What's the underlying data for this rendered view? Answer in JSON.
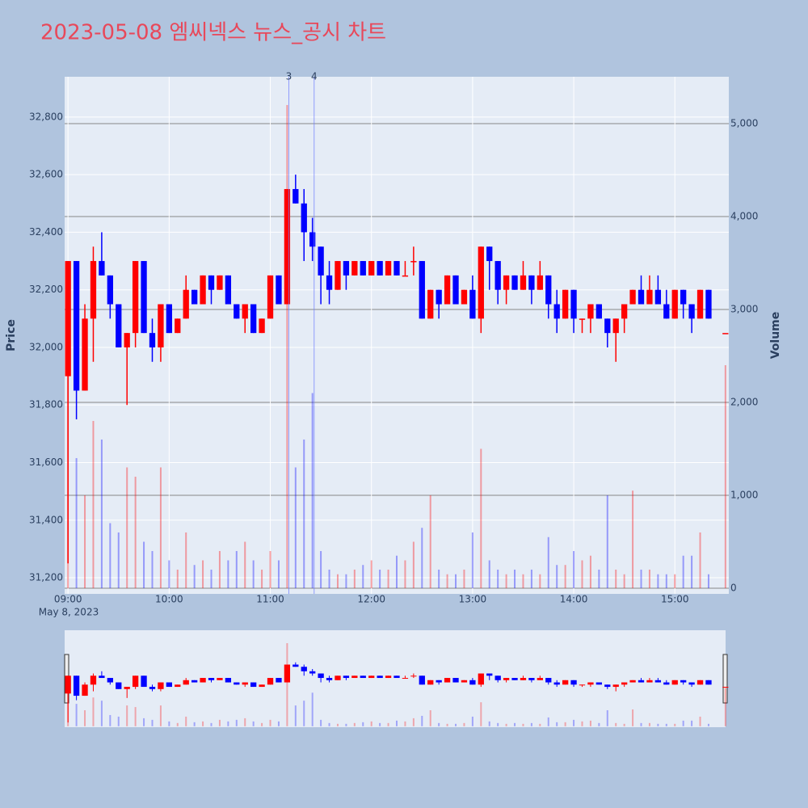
{
  "chart_data": {
    "type": "candlestick",
    "title": "2023-05-08 엠씨넥스 뉴스_공시 차트",
    "y_label": "Price",
    "y2_label": "Volume",
    "x_date_label": "May 8, 2023",
    "increasing_color": "#ff0000",
    "decreasing_color": "#0000ff",
    "grid": true,
    "xlim": [
      "2023-05-08 08:58",
      "2023-05-08 15:32"
    ],
    "xticks": [
      {
        "value": "2023-05-08 09:00",
        "label": "09:00"
      },
      {
        "value": "2023-05-08 10:00",
        "label": "10:00"
      },
      {
        "value": "2023-05-08 11:00",
        "label": "11:00"
      },
      {
        "value": "2023-05-08 12:00",
        "label": "12:00"
      },
      {
        "value": "2023-05-08 13:00",
        "label": "13:00"
      },
      {
        "value": "2023-05-08 14:00",
        "label": "14:00"
      },
      {
        "value": "2023-05-08 15:00",
        "label": "15:00"
      }
    ],
    "ylim": [
      31144,
      32940
    ],
    "yticks": [
      {
        "value": 31200,
        "label": "31,200"
      },
      {
        "value": 31400,
        "label": "31,400"
      },
      {
        "value": 31600,
        "label": "31,600"
      },
      {
        "value": 31800,
        "label": "31,800"
      },
      {
        "value": 32000,
        "label": "32,000"
      },
      {
        "value": 32200,
        "label": "32,200"
      },
      {
        "value": 32400,
        "label": "32,400"
      },
      {
        "value": 32600,
        "label": "32,600"
      },
      {
        "value": 32800,
        "label": "32,800"
      }
    ],
    "y2lim": [
      -61,
      5504
    ],
    "y2ticks": [
      0,
      {
        "value": 1000,
        "label": "1,000"
      },
      {
        "value": 2000,
        "label": "2,000"
      },
      {
        "value": 3000,
        "label": "3,000"
      },
      {
        "value": 4000,
        "label": "4,000"
      },
      {
        "value": 5000,
        "label": "5,000"
      }
    ],
    "annotations": [
      {
        "x": "2023-05-08 11:11",
        "text": "3"
      },
      {
        "x": "2023-05-08 11:26",
        "text": "4"
      }
    ],
    "x": [
      "2023-05-08 09:00",
      "2023-05-08 09:05",
      "2023-05-08 09:10",
      "2023-05-08 09:15",
      "2023-05-08 09:20",
      "2023-05-08 09:25",
      "2023-05-08 09:30",
      "2023-05-08 09:35",
      "2023-05-08 09:40",
      "2023-05-08 09:45",
      "2023-05-08 09:50",
      "2023-05-08 09:55",
      "2023-05-08 10:00",
      "2023-05-08 10:05",
      "2023-05-08 10:10",
      "2023-05-08 10:15",
      "2023-05-08 10:20",
      "2023-05-08 10:25",
      "2023-05-08 10:30",
      "2023-05-08 10:35",
      "2023-05-08 10:40",
      "2023-05-08 10:45",
      "2023-05-08 10:50",
      "2023-05-08 10:55",
      "2023-05-08 11:00",
      "2023-05-08 11:05",
      "2023-05-08 11:10",
      "2023-05-08 11:15",
      "2023-05-08 11:20",
      "2023-05-08 11:25",
      "2023-05-08 11:30",
      "2023-05-08 11:35",
      "2023-05-08 11:40",
      "2023-05-08 11:45",
      "2023-05-08 11:50",
      "2023-05-08 11:55",
      "2023-05-08 12:00",
      "2023-05-08 12:05",
      "2023-05-08 12:10",
      "2023-05-08 12:15",
      "2023-05-08 12:20",
      "2023-05-08 12:25",
      "2023-05-08 12:30",
      "2023-05-08 12:35",
      "2023-05-08 12:40",
      "2023-05-08 12:45",
      "2023-05-08 12:50",
      "2023-05-08 12:55",
      "2023-05-08 13:00",
      "2023-05-08 13:05",
      "2023-05-08 13:10",
      "2023-05-08 13:15",
      "2023-05-08 13:20",
      "2023-05-08 13:25",
      "2023-05-08 13:30",
      "2023-05-08 13:35",
      "2023-05-08 13:40",
      "2023-05-08 13:45",
      "2023-05-08 13:50",
      "2023-05-08 13:55",
      "2023-05-08 14:00",
      "2023-05-08 14:05",
      "2023-05-08 14:10",
      "2023-05-08 14:15",
      "2023-05-08 14:20",
      "2023-05-08 14:25",
      "2023-05-08 14:30",
      "2023-05-08 14:35",
      "2023-05-08 14:40",
      "2023-05-08 14:45",
      "2023-05-08 14:50",
      "2023-05-08 14:55",
      "2023-05-08 15:00",
      "2023-05-08 15:05",
      "2023-05-08 15:10",
      "2023-05-08 15:15",
      "2023-05-08 15:20",
      "2023-05-08 15:30"
    ],
    "open": [
      31900,
      32300,
      31850,
      32100,
      32300,
      32250,
      32150,
      32000,
      32050,
      32300,
      32050,
      32000,
      32150,
      32050,
      32100,
      32200,
      32150,
      32250,
      32200,
      32250,
      32150,
      32100,
      32150,
      32050,
      32100,
      32250,
      32150,
      32550,
      32500,
      32400,
      32350,
      32250,
      32200,
      32300,
      32250,
      32300,
      32250,
      32300,
      32250,
      32300,
      32250,
      32300,
      32300,
      32100,
      32200,
      32150,
      32250,
      32150,
      32200,
      32100,
      32350,
      32300,
      32200,
      32250,
      32200,
      32250,
      32200,
      32250,
      32150,
      32100,
      32200,
      32100,
      32100,
      32150,
      32100,
      32050,
      32100,
      32150,
      32200,
      32150,
      32200,
      32150,
      32100,
      32200,
      32150,
      32100,
      32200,
      32050
    ],
    "high": [
      32300,
      32300,
      32150,
      32350,
      32400,
      32250,
      32150,
      32050,
      32300,
      32300,
      32100,
      32150,
      32150,
      32100,
      32250,
      32200,
      32250,
      32250,
      32250,
      32250,
      32150,
      32150,
      32150,
      32100,
      32250,
      32250,
      32550,
      32600,
      32550,
      32450,
      32350,
      32300,
      32300,
      32300,
      32300,
      32300,
      32300,
      32300,
      32300,
      32300,
      32300,
      32350,
      32300,
      32200,
      32200,
      32250,
      32250,
      32200,
      32250,
      32350,
      32350,
      32300,
      32250,
      32250,
      32300,
      32250,
      32300,
      32250,
      32200,
      32200,
      32200,
      32100,
      32150,
      32150,
      32100,
      32100,
      32150,
      32200,
      32250,
      32250,
      32250,
      32200,
      32200,
      32200,
      32150,
      32200,
      32200,
      32050
    ],
    "low": [
      31250,
      31750,
      31850,
      31950,
      32250,
      32100,
      32000,
      31800,
      32000,
      32050,
      31950,
      31950,
      32050,
      32050,
      32100,
      32150,
      32150,
      32150,
      32200,
      32150,
      32100,
      32050,
      32050,
      32050,
      32100,
      32150,
      32150,
      32500,
      32300,
      32300,
      32150,
      32150,
      32200,
      32200,
      32250,
      32250,
      32250,
      32250,
      32250,
      32250,
      32250,
      32250,
      32100,
      32100,
      32100,
      32150,
      32150,
      32150,
      32100,
      32050,
      32200,
      32150,
      32150,
      32200,
      32200,
      32150,
      32200,
      32100,
      32050,
      32100,
      32050,
      32050,
      32050,
      32100,
      32000,
      31950,
      32050,
      32150,
      32150,
      32150,
      32150,
      32100,
      32100,
      32100,
      32050,
      32100,
      32100,
      32050
    ],
    "close": [
      32300,
      31850,
      32100,
      32300,
      32250,
      32150,
      32000,
      32050,
      32300,
      32050,
      32000,
      32150,
      32050,
      32100,
      32200,
      32150,
      32250,
      32200,
      32250,
      32150,
      32100,
      32150,
      32050,
      32100,
      32250,
      32150,
      32550,
      32500,
      32400,
      32350,
      32250,
      32200,
      32300,
      32250,
      32300,
      32250,
      32300,
      32250,
      32300,
      32250,
      32250,
      32300,
      32100,
      32200,
      32150,
      32250,
      32150,
      32200,
      32100,
      32350,
      32300,
      32200,
      32250,
      32200,
      32250,
      32200,
      32250,
      32150,
      32100,
      32200,
      32100,
      32100,
      32150,
      32100,
      32050,
      32100,
      32150,
      32200,
      32150,
      32200,
      32150,
      32100,
      32200,
      32150,
      32100,
      32200,
      32100,
      32050
    ],
    "volume": [
      2800,
      1400,
      1000,
      1800,
      1600,
      700,
      600,
      1300,
      1200,
      500,
      400,
      1300,
      300,
      200,
      600,
      250,
      300,
      200,
      400,
      300,
      400,
      500,
      300,
      200,
      400,
      300,
      5200,
      1300,
      1600,
      2100,
      400,
      200,
      150,
      150,
      200,
      250,
      300,
      200,
      200,
      350,
      300,
      500,
      650,
      1000,
      200,
      150,
      150,
      200,
      600,
      1500,
      300,
      200,
      150,
      200,
      150,
      200,
      150,
      550,
      250,
      250,
      400,
      300,
      350,
      200,
      1000,
      200,
      150,
      1050,
      200,
      200,
      150,
      150,
      150,
      350,
      350,
      600,
      150,
      2400
    ]
  }
}
